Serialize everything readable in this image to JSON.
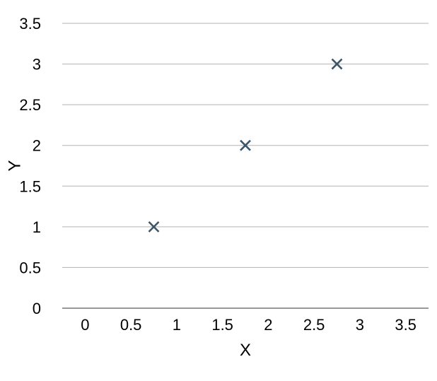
{
  "chart_data": {
    "type": "scatter",
    "title": "",
    "xlabel": "X",
    "ylabel": "Y",
    "xlim": [
      -0.25,
      3.75
    ],
    "ylim": [
      0,
      3.5
    ],
    "x_ticks": [
      0,
      0.5,
      1,
      1.5,
      2,
      2.5,
      3,
      3.5
    ],
    "y_ticks": [
      0,
      0.5,
      1,
      1.5,
      2,
      2.5,
      3,
      3.5
    ],
    "x_tick_labels": [
      "0",
      "0.5",
      "1",
      "1.5",
      "2",
      "2.5",
      "3",
      "3.5"
    ],
    "y_tick_labels": [
      "0",
      "0.5",
      "1",
      "1.5",
      "2",
      "2.5",
      "3",
      "3.5"
    ],
    "grid": "horizontal",
    "legend": "none",
    "marker": "x",
    "series": [
      {
        "color": "#3d5568",
        "points": [
          {
            "x": 0.75,
            "y": 1
          },
          {
            "x": 1.75,
            "y": 2
          },
          {
            "x": 2.75,
            "y": 3
          }
        ]
      }
    ]
  }
}
